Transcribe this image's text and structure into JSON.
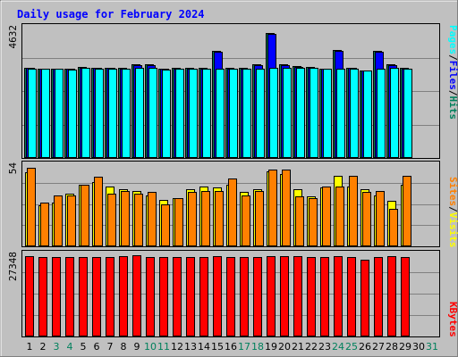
{
  "chart_data": {
    "type": "bar",
    "title": "Daily usage for February 2024",
    "days": [
      "1",
      "2",
      "3",
      "4",
      "5",
      "6",
      "7",
      "8",
      "9",
      "10",
      "11",
      "12",
      "13",
      "14",
      "15",
      "16",
      "17",
      "18",
      "19",
      "20",
      "21",
      "22",
      "23",
      "24",
      "25",
      "26",
      "27",
      "28",
      "29",
      "30",
      "31"
    ],
    "weekend_days": [
      "3",
      "4",
      "10",
      "11",
      "17",
      "18",
      "24",
      "25",
      "31"
    ],
    "panels": [
      {
        "id": "top",
        "max_label": "4632",
        "ymax": 4632,
        "series": [
          {
            "name": "Hits",
            "color": "#00805c",
            "values": [
              3220,
              3180,
              3180,
              3180,
              3230,
              3210,
              3210,
              3190,
              3320,
              3320,
              3180,
              3190,
              3200,
              3200,
              3800,
              3190,
              3190,
              3320,
              4440,
              3330,
              3270,
              3240,
              3180,
              3830,
              3220,
              3120,
              3810,
              3320,
              3200,
              null,
              null
            ]
          },
          {
            "name": "Files",
            "color": "#0000ff",
            "values": [
              3200,
              3160,
              3160,
              3160,
              3210,
              3190,
              3190,
              3170,
              3300,
              3300,
              3160,
              3170,
              3180,
              3180,
              3780,
              3170,
              3170,
              3300,
              4420,
              3310,
              3250,
              3220,
              3160,
              3810,
              3200,
              3100,
              3790,
              3300,
              3180,
              null,
              null
            ]
          },
          {
            "name": "Pages",
            "color": "#00ffff",
            "values": [
              3180,
              3160,
              3170,
              3150,
              3190,
              3160,
              3180,
              3160,
              3200,
              3190,
              3140,
              3160,
              3180,
              3160,
              3170,
              3180,
              3160,
              3180,
              3220,
              3190,
              3200,
              3190,
              3170,
              3180,
              3160,
              3100,
              3160,
              3200,
              3160,
              null,
              null
            ]
          }
        ],
        "legend": [
          "Pages",
          "Files",
          "Hits"
        ]
      },
      {
        "id": "middle",
        "max_label": "54",
        "ymax": 54,
        "series": [
          {
            "name": "Visits",
            "color": "#ffff00",
            "values": [
              49,
              27,
              29,
              35,
              41,
              43,
              40,
              38,
              37,
              34,
              31,
              32,
              38,
              40,
              39,
              41,
              36,
              38,
              50,
              48,
              38,
              33,
              39,
              47,
              40,
              38,
              34,
              30,
              41,
              null,
              null
            ]
          },
          {
            "name": "Sites",
            "color": "#ff8000",
            "values": [
              52,
              29,
              34,
              34,
              41,
              46,
              35,
              37,
              35,
              36,
              28,
              32,
              36,
              37,
              37,
              45,
              34,
              37,
              51,
              51,
              33,
              32,
              40,
              40,
              47,
              36,
              37,
              25,
              47,
              null,
              null
            ]
          }
        ],
        "legend": [
          "Sites",
          "Visits"
        ]
      },
      {
        "id": "bottom",
        "max_label": "27348",
        "ymax": 27348,
        "series": [
          {
            "name": "KBytes",
            "color": "#ff0000",
            "values": [
              26800,
              26500,
              26600,
              26600,
              26600,
              26600,
              26600,
              26700,
              27000,
              26600,
              26600,
              26400,
              26500,
              26600,
              26900,
              26600,
              26600,
              26600,
              26800,
              26900,
              26800,
              26600,
              26600,
              26900,
              26600,
              25700,
              26600,
              26700,
              26600,
              null,
              null
            ]
          }
        ],
        "legend": [
          "KBytes"
        ]
      }
    ],
    "colors": {
      "background": "#c0c0c0",
      "plot": "#c0c0c0",
      "title": "#0000ff",
      "weekday_label": "#000000",
      "weekend_label": "#00805c"
    }
  }
}
